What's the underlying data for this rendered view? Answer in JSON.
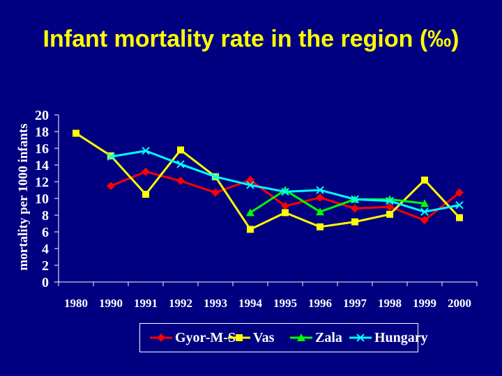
{
  "chart_data": {
    "type": "line",
    "title": "Infant mortality rate in the region (‰)",
    "ylabel": "mortality per 1000 infants",
    "xlabel": "",
    "categories": [
      "1980",
      "1990",
      "1991",
      "1992",
      "1993",
      "1994",
      "1995",
      "1996",
      "1997",
      "1998",
      "1999",
      "2000"
    ],
    "ylim": [
      0,
      20
    ],
    "yticks": [
      0,
      2,
      4,
      6,
      8,
      10,
      12,
      14,
      16,
      18,
      20
    ],
    "legend_position": "bottom",
    "series": [
      {
        "name": "Gyor-M-S",
        "color": "#FF0000",
        "marker": "diamond",
        "values": [
          null,
          11.5,
          13.2,
          12.1,
          10.7,
          12.2,
          9.1,
          10.1,
          8.8,
          9.0,
          7.4,
          10.7
        ]
      },
      {
        "name": "Vas",
        "color": "#FFFF00",
        "marker": "square",
        "values": [
          17.8,
          15.1,
          10.5,
          15.8,
          12.6,
          6.3,
          8.3,
          6.6,
          7.2,
          8.1,
          12.2,
          7.7
        ]
      },
      {
        "name": "Zala",
        "color": "#00FF00",
        "marker": "triangle",
        "values": [
          null,
          null,
          null,
          null,
          null,
          8.3,
          11.0,
          8.4,
          9.9,
          9.9,
          9.4,
          null
        ]
      },
      {
        "name": "Hungary",
        "color": "#00FFFF",
        "marker": "x",
        "values": [
          null,
          15.0,
          15.7,
          14.1,
          12.6,
          11.6,
          10.8,
          11.0,
          9.9,
          9.7,
          8.4,
          9.2
        ]
      }
    ]
  }
}
